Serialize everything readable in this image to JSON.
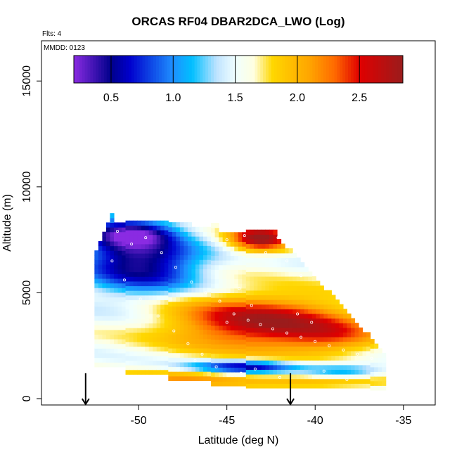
{
  "chart_data": {
    "type": "heatmap",
    "title": "ORCAS RF04 DBAR2DCA_LWO (Log)",
    "annotations": {
      "flights": "Flts: 4",
      "mmdd": "MMDD: 0123"
    },
    "xlabel": "Latitude (deg N)",
    "ylabel": "Altitude (m)",
    "xlim": [
      -55.5,
      -33.2
    ],
    "ylim": [
      -300,
      16900
    ],
    "x_ticks": [
      -50,
      -45,
      -40,
      -35
    ],
    "x_tick_labels": [
      "-50",
      "-45",
      "-40",
      "-35"
    ],
    "y_ticks": [
      0,
      5000,
      10000,
      15000
    ],
    "y_tick_labels": [
      "0",
      "5000",
      "10000",
      "15000"
    ],
    "colorbar": {
      "range": [
        0.2,
        2.85
      ],
      "ticks": [
        0.5,
        1.0,
        1.5,
        2.0,
        2.5
      ],
      "tick_labels": [
        "0.5",
        "1.0",
        "1.5",
        "2.0",
        "2.5"
      ],
      "color_stops": [
        [
          0.2,
          "#8a2be2"
        ],
        [
          0.5,
          "#00008b"
        ],
        [
          0.65,
          "#0000cd"
        ],
        [
          1.0,
          "#1e90ff"
        ],
        [
          1.15,
          "#00bfff"
        ],
        [
          1.35,
          "#bfe3ff"
        ],
        [
          1.5,
          "#f0ffff"
        ],
        [
          1.65,
          "#ffffe0"
        ],
        [
          1.8,
          "#ffd700"
        ],
        [
          2.1,
          "#ffa500"
        ],
        [
          2.3,
          "#ff6a00"
        ],
        [
          2.5,
          "#e00000"
        ],
        [
          2.85,
          "#9a1c1c"
        ]
      ]
    },
    "data_grid": {
      "lat_range": [
        -52.5,
        -36.2
      ],
      "alt_range": [
        1500,
        9000
      ],
      "cell_lat": 0.22,
      "cell_alt": 220,
      "note": "Curtain of log10 values: low values (~0.5-1.3) in upper-left and lower band near 1500 m; high values (~2.5-2.8) centered near -43 deg N, 3500 m and 7500 m."
    },
    "sample_points": [
      {
        "lat": -51.8,
        "alt": 8400
      },
      {
        "lat": -51.2,
        "alt": 7900
      },
      {
        "lat": -50.4,
        "alt": 7300
      },
      {
        "lat": -49.6,
        "alt": 7600
      },
      {
        "lat": -48.7,
        "alt": 6900
      },
      {
        "lat": -47.9,
        "alt": 6200
      },
      {
        "lat": -47.0,
        "alt": 5500
      },
      {
        "lat": -46.2,
        "alt": 5000
      },
      {
        "lat": -45.4,
        "alt": 4600
      },
      {
        "lat": -44.6,
        "alt": 4000
      },
      {
        "lat": -43.8,
        "alt": 3700
      },
      {
        "lat": -43.1,
        "alt": 3500
      },
      {
        "lat": -42.4,
        "alt": 3300
      },
      {
        "lat": -41.6,
        "alt": 3100
      },
      {
        "lat": -40.8,
        "alt": 2900
      },
      {
        "lat": -40.0,
        "alt": 2700
      },
      {
        "lat": -39.2,
        "alt": 2500
      },
      {
        "lat": -38.4,
        "alt": 2300
      },
      {
        "lat": -37.6,
        "alt": 2100
      },
      {
        "lat": -36.8,
        "alt": 1900
      },
      {
        "lat": -45.0,
        "alt": 7500
      },
      {
        "lat": -44.0,
        "alt": 7700
      },
      {
        "lat": -42.8,
        "alt": 6900
      },
      {
        "lat": -42.1,
        "alt": 7600
      },
      {
        "lat": -41.6,
        "alt": 6500
      },
      {
        "lat": -40.8,
        "alt": 5800
      },
      {
        "lat": -46.8,
        "alt": 1800
      },
      {
        "lat": -45.6,
        "alt": 1500
      },
      {
        "lat": -44.2,
        "alt": 1200
      },
      {
        "lat": -43.4,
        "alt": 1400
      },
      {
        "lat": -42.0,
        "alt": 1000
      },
      {
        "lat": -39.5,
        "alt": 1300
      },
      {
        "lat": -38.2,
        "alt": 900
      },
      {
        "lat": -51.5,
        "alt": 6500
      },
      {
        "lat": -50.8,
        "alt": 5600
      },
      {
        "lat": -49.9,
        "alt": 4700
      },
      {
        "lat": -48.9,
        "alt": 3900
      },
      {
        "lat": -48.0,
        "alt": 3200
      },
      {
        "lat": -47.2,
        "alt": 2600
      },
      {
        "lat": -46.4,
        "alt": 2100
      },
      {
        "lat": -45.0,
        "alt": 3600
      },
      {
        "lat": -44.3,
        "alt": 5200
      },
      {
        "lat": -43.6,
        "alt": 4400
      },
      {
        "lat": -41.0,
        "alt": 4000
      },
      {
        "lat": -40.2,
        "alt": 3600
      }
    ],
    "markers": [
      {
        "label": "down-arrow",
        "lat": -53.0,
        "alt": 500
      },
      {
        "label": "down-arrow",
        "lat": -41.4,
        "alt": 500
      }
    ]
  }
}
